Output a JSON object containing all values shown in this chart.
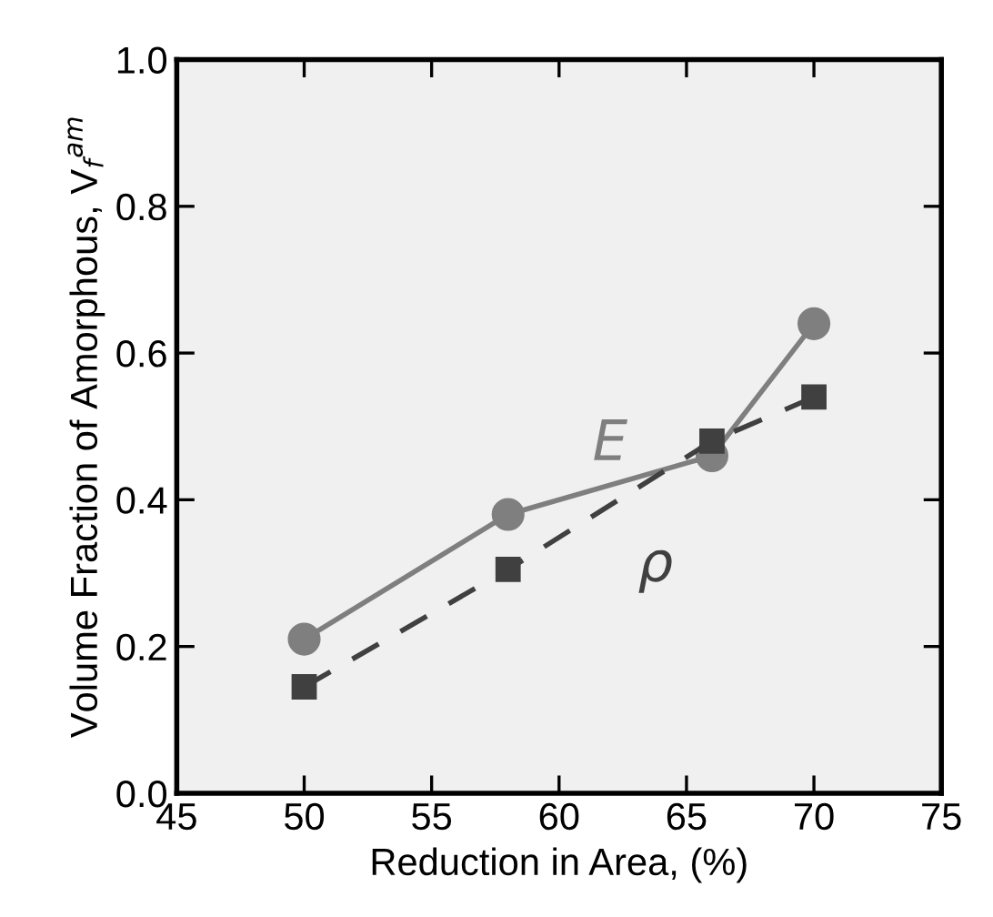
{
  "chart_data": {
    "type": "line",
    "xlabel": "Reduction in Area, (%)",
    "ylabel": "Volume Fraction of Amorphous, V$_{f}$$^{am}$",
    "x": [
      50,
      58,
      66,
      70
    ],
    "series": [
      {
        "name": "E",
        "color": "#7f7f7f",
        "values": [
          0.21,
          0.38,
          0.46,
          0.64
        ],
        "marker": "circle",
        "line_style": "solid"
      },
      {
        "name": "ρ",
        "color": "#404040",
        "values": [
          0.145,
          0.305,
          0.48,
          0.54
        ],
        "marker": "square",
        "line_style": "dashed"
      }
    ],
    "xlim": [
      45,
      75
    ],
    "xticks": [
      45,
      50,
      55,
      60,
      65,
      70,
      75
    ],
    "ylim": [
      0.0,
      1.0
    ],
    "yticks": [
      {
        "value": 0,
        "label": "0.0"
      },
      0.2,
      0.4,
      0.6,
      0.8,
      {
        "value": 1,
        "label": "1.0"
      }
    ],
    "grid": false,
    "legend": false
  }
}
